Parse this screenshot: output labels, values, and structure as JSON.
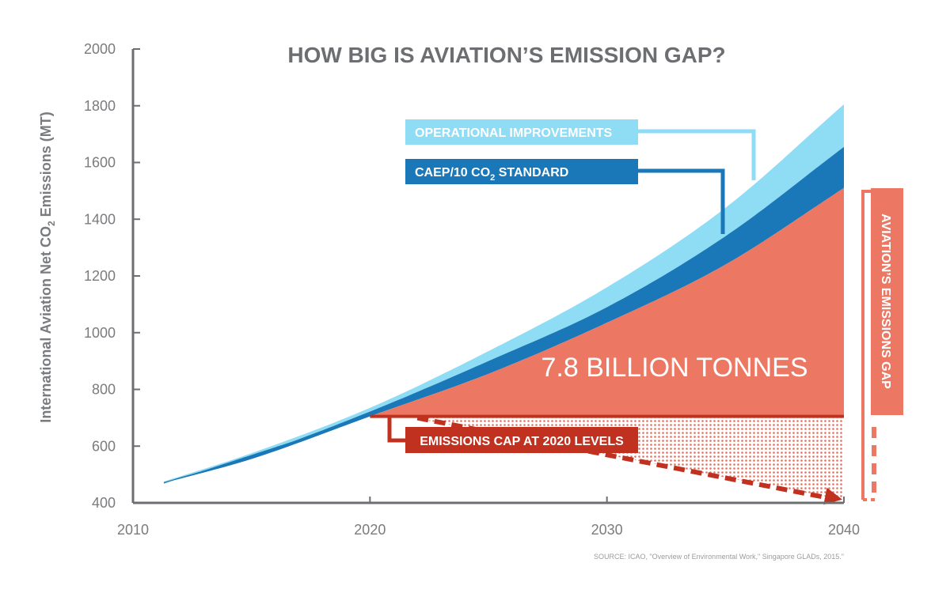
{
  "chart_data": {
    "type": "area",
    "title": "HOW BIG IS AVIATION’S EMISSION GAP?",
    "ylabel_main": "International Aviation Net CO",
    "ylabel_sub": "2",
    "ylabel_tail": " Emissions (MT)",
    "xlim": [
      2010,
      2040
    ],
    "ylim": [
      400,
      2000
    ],
    "x_ticks": [
      "2010",
      "2020",
      "2030",
      "2040"
    ],
    "y_ticks": [
      "2000",
      "1800",
      "1600",
      "1400",
      "1200",
      "1000",
      "800",
      "600",
      "400"
    ],
    "x": [
      2011.3,
      2015,
      2020,
      2025,
      2030,
      2035,
      2040
    ],
    "series": [
      {
        "name": "OPERATIONAL IMPROVEMENTS",
        "color": "#8fdcf5",
        "values": [
          475,
          575,
          735,
          935,
          1160,
          1440,
          1805
        ]
      },
      {
        "name": "CAEP/10 CO₂ STANDARD",
        "color": "#1a78b8",
        "values": [
          473,
          565,
          722,
          900,
          1090,
          1340,
          1655
        ]
      },
      {
        "name": "7.8 BILLION TONNES",
        "color": "#ec7864",
        "values": [
          470,
          555,
          705,
          855,
          1035,
          1240,
          1510
        ]
      }
    ],
    "cap": {
      "label": "EMISSIONS CAP AT 2020 LEVELS",
      "value": 705,
      "color": "#c0321f"
    },
    "annotations": {
      "operational": {
        "label": "OPERATIONAL IMPROVEMENTS",
        "color": "#8fdcf5"
      },
      "caep": {
        "label_main": "CAEP/10 CO",
        "label_sub": "2",
        "label_tail": " STANDARD",
        "color": "#1a78b8"
      },
      "volume": "7.8 BILLION TONNES",
      "gap": {
        "label": "AVIATION’S EMISSIONS GAP",
        "color": "#ec7864"
      }
    },
    "source": "SOURCE: ICAO, \"Overview of Environmental Work,\" Singapore GLADs, 2015.\""
  }
}
